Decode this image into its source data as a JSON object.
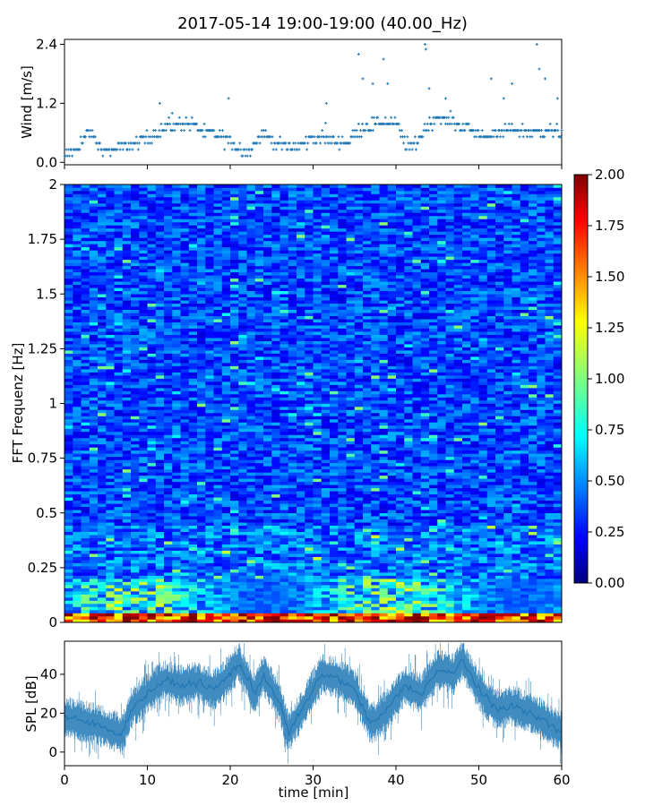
{
  "title": "2017-05-14 19:00-19:00 (40.00_Hz)",
  "chart_data": [
    {
      "id": "wind",
      "type": "scatter",
      "ylabel": "Wind [m/s]",
      "xlim": [
        0,
        60
      ],
      "ylim": [
        -0.05,
        2.5
      ],
      "yticks": [
        0.0,
        1.2,
        2.4
      ],
      "ytick_labels": [
        "0.0",
        "1.2",
        "2.4"
      ],
      "xticks": [
        0,
        10,
        20,
        30,
        40,
        50,
        60
      ],
      "color": "#1f77b4",
      "marker": "+",
      "trend": {
        "x": [
          0,
          2,
          3,
          5,
          7,
          9,
          10,
          12,
          15,
          17,
          19,
          21,
          22,
          24,
          26,
          28,
          30,
          32,
          34,
          36,
          38,
          40,
          41,
          42,
          44,
          45,
          47,
          48,
          50,
          52,
          54,
          56,
          58,
          60
        ],
        "y": [
          0.1,
          0.4,
          0.6,
          0.2,
          0.3,
          0.4,
          0.5,
          0.7,
          0.8,
          0.6,
          0.5,
          0.3,
          0.2,
          0.6,
          0.35,
          0.3,
          0.5,
          0.5,
          0.4,
          0.7,
          0.8,
          0.8,
          0.4,
          0.3,
          0.8,
          0.9,
          0.8,
          0.75,
          0.55,
          0.55,
          0.7,
          0.6,
          0.65,
          0.6
        ]
      },
      "outliers": [
        {
          "x": 11.5,
          "y": 1.2
        },
        {
          "x": 13,
          "y": 1.0
        },
        {
          "x": 19.8,
          "y": 1.3
        },
        {
          "x": 31.5,
          "y": 0.8
        },
        {
          "x": 31.6,
          "y": 1.2
        },
        {
          "x": 35.5,
          "y": 2.2
        },
        {
          "x": 36,
          "y": 1.7
        },
        {
          "x": 38.5,
          "y": 2.1
        },
        {
          "x": 37.2,
          "y": 1.6
        },
        {
          "x": 39,
          "y": 1.6
        },
        {
          "x": 43.5,
          "y": 2.4
        },
        {
          "x": 43.6,
          "y": 2.3
        },
        {
          "x": 44,
          "y": 1.5
        },
        {
          "x": 46,
          "y": 1.3
        },
        {
          "x": 51.5,
          "y": 1.7
        },
        {
          "x": 53,
          "y": 1.3
        },
        {
          "x": 54,
          "y": 1.6
        },
        {
          "x": 57,
          "y": 2.4
        },
        {
          "x": 57.3,
          "y": 1.9
        },
        {
          "x": 58,
          "y": 1.7
        },
        {
          "x": 59.5,
          "y": 1.3
        }
      ]
    },
    {
      "id": "spectrogram",
      "type": "heatmap",
      "ylabel": "FFT Frequenz [Hz]",
      "xlim": [
        0,
        60
      ],
      "ylim": [
        0,
        2
      ],
      "yticks": [
        0,
        0.25,
        0.5,
        0.75,
        1,
        1.25,
        1.5,
        1.75,
        2
      ],
      "ytick_labels": [
        "0",
        "0.25",
        "0.5",
        "0.75",
        "1",
        "1.25",
        "1.5",
        "1.75",
        "2"
      ],
      "colormap": "jet",
      "clim": [
        0,
        2
      ],
      "colorbar_ticks": [
        "0.00",
        "0.25",
        "0.50",
        "0.75",
        "1.00",
        "1.25",
        "1.50",
        "1.75",
        "2.00"
      ],
      "colorbar_values": [
        0,
        0.25,
        0.5,
        0.75,
        1.0,
        1.25,
        1.5,
        1.75,
        2.0
      ],
      "description_bands": [
        {
          "f_from": 0,
          "f_to": 0.05,
          "level": 1.8
        },
        {
          "f_from": 0.05,
          "f_to": 0.2,
          "level": 0.9
        },
        {
          "f_from": 0.2,
          "f_to": 2.0,
          "level": 0.35
        }
      ]
    },
    {
      "id": "spl",
      "type": "line",
      "ylabel": "SPL [dB]",
      "xlabel": "time [min]",
      "xlim": [
        0,
        60
      ],
      "ylim": [
        -7,
        57
      ],
      "yticks": [
        0,
        20,
        40
      ],
      "ytick_labels": [
        "0",
        "20",
        "40"
      ],
      "xticks": [
        0,
        10,
        20,
        30,
        40,
        50,
        60
      ],
      "xtick_labels": [
        "0",
        "10",
        "20",
        "30",
        "40",
        "50",
        "60"
      ],
      "color": "#1f77b4",
      "trend": {
        "x": [
          0,
          2,
          4,
          7,
          8,
          10,
          12,
          14,
          16,
          18,
          20,
          21,
          23,
          24,
          26,
          27,
          29,
          31,
          33,
          35,
          37,
          39,
          41,
          43,
          45,
          47,
          48,
          50,
          52,
          54,
          56,
          58,
          60
        ],
        "y": [
          18,
          16,
          14,
          9,
          22,
          30,
          37,
          34,
          36,
          32,
          40,
          46,
          30,
          40,
          25,
          10,
          24,
          40,
          38,
          32,
          14,
          22,
          34,
          30,
          42,
          40,
          48,
          32,
          22,
          24,
          20,
          16,
          10
        ]
      }
    }
  ]
}
